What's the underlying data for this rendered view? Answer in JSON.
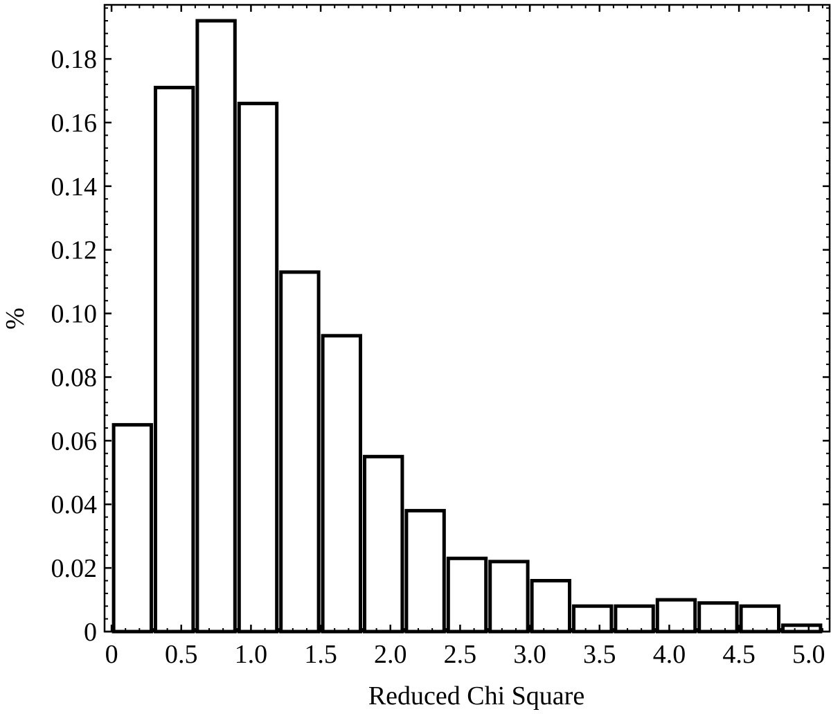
{
  "chart_data": {
    "type": "bar",
    "title": "",
    "xlabel": "Reduced Chi Square",
    "ylabel": "%",
    "xlim": [
      -0.05,
      5.15
    ],
    "ylim": [
      0,
      0.197
    ],
    "bin_width": 0.3,
    "bins": [
      {
        "x_start": 0.0,
        "x_end": 0.3,
        "value": 0.065
      },
      {
        "x_start": 0.3,
        "x_end": 0.6,
        "value": 0.171
      },
      {
        "x_start": 0.6,
        "x_end": 0.9,
        "value": 0.192
      },
      {
        "x_start": 0.9,
        "x_end": 1.2,
        "value": 0.166
      },
      {
        "x_start": 1.2,
        "x_end": 1.5,
        "value": 0.113
      },
      {
        "x_start": 1.5,
        "x_end": 1.8,
        "value": 0.093
      },
      {
        "x_start": 1.8,
        "x_end": 2.1,
        "value": 0.055
      },
      {
        "x_start": 2.1,
        "x_end": 2.4,
        "value": 0.038
      },
      {
        "x_start": 2.4,
        "x_end": 2.7,
        "value": 0.023
      },
      {
        "x_start": 2.7,
        "x_end": 3.0,
        "value": 0.022
      },
      {
        "x_start": 3.0,
        "x_end": 3.3,
        "value": 0.016
      },
      {
        "x_start": 3.3,
        "x_end": 3.6,
        "value": 0.008
      },
      {
        "x_start": 3.6,
        "x_end": 3.9,
        "value": 0.008
      },
      {
        "x_start": 3.9,
        "x_end": 4.2,
        "value": 0.01
      },
      {
        "x_start": 4.2,
        "x_end": 4.5,
        "value": 0.009
      },
      {
        "x_start": 4.5,
        "x_end": 4.8,
        "value": 0.008
      },
      {
        "x_start": 4.8,
        "x_end": 5.1,
        "value": 0.002
      }
    ],
    "x_ticks": [
      {
        "value": 0,
        "label": "0"
      },
      {
        "value": 0.5,
        "label": "0.5"
      },
      {
        "value": 1.0,
        "label": "1.0"
      },
      {
        "value": 1.5,
        "label": "1.5"
      },
      {
        "value": 2.0,
        "label": "2.0"
      },
      {
        "value": 2.5,
        "label": "2.5"
      },
      {
        "value": 3.0,
        "label": "3.0"
      },
      {
        "value": 3.5,
        "label": "3.5"
      },
      {
        "value": 4.0,
        "label": "4.0"
      },
      {
        "value": 4.5,
        "label": "4.5"
      },
      {
        "value": 5.0,
        "label": "5.0"
      }
    ],
    "y_ticks": [
      {
        "value": 0,
        "label": "0"
      },
      {
        "value": 0.02,
        "label": "0.02"
      },
      {
        "value": 0.04,
        "label": "0.04"
      },
      {
        "value": 0.06,
        "label": "0.06"
      },
      {
        "value": 0.08,
        "label": "0.08"
      },
      {
        "value": 0.1,
        "label": "0.10"
      },
      {
        "value": 0.12,
        "label": "0.12"
      },
      {
        "value": 0.14,
        "label": "0.14"
      },
      {
        "value": 0.16,
        "label": "0.16"
      },
      {
        "value": 0.18,
        "label": "0.18"
      }
    ],
    "minor_tick_step": 0.1,
    "minor_y_tick_step": 0.004,
    "grid": false,
    "legend": "none",
    "bar_fill": "#ffffff",
    "bar_stroke": "#000000"
  }
}
